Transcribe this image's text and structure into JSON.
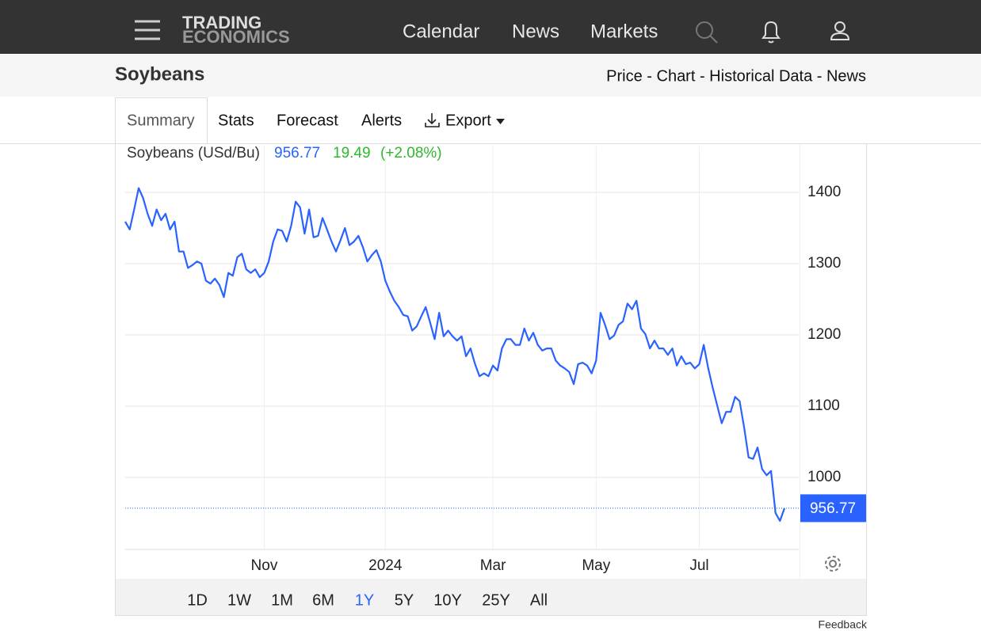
{
  "logo": {
    "line1": "TRADING",
    "line2": "ECONOMICS"
  },
  "nav": [
    "Calendar",
    "News",
    "Markets"
  ],
  "header": {
    "title": "Soybeans",
    "links": "Price - Chart - Historical Data - News"
  },
  "tabs": [
    "Summary",
    "Stats",
    "Forecast",
    "Alerts",
    "Export"
  ],
  "quote": {
    "change": "19.49",
    "change_percent": "(+2.08%)"
  },
  "ranges": [
    "1D",
    "1W",
    "1M",
    "6M",
    "1Y",
    "5Y",
    "10Y",
    "25Y",
    "All"
  ],
  "feedback": "Feedback",
  "chart_data": {
    "type": "line",
    "categories": [
      null,
      null,
      null,
      null,
      null,
      null,
      null,
      null,
      null,
      null,
      null,
      null,
      null,
      null,
      null,
      null,
      null,
      null,
      null,
      null,
      null,
      null,
      null,
      null,
      null,
      null,
      null,
      null,
      null,
      null,
      null,
      "Nov",
      null,
      null,
      null,
      null,
      null,
      null,
      null,
      null,
      null,
      null,
      null,
      null,
      null,
      null,
      null,
      null,
      null,
      null,
      null,
      null,
      null,
      null,
      null,
      null,
      null,
      null,
      "2024",
      null,
      null,
      null,
      null,
      null,
      null,
      null,
      null,
      null,
      null,
      null,
      null,
      null,
      null,
      null,
      null,
      null,
      null,
      null,
      null,
      null,
      null,
      null,
      "Mar",
      null,
      null,
      null,
      null,
      null,
      null,
      null,
      null,
      null,
      null,
      null,
      null,
      null,
      null,
      null,
      null,
      null,
      null,
      null,
      null,
      null,
      null,
      "May",
      null,
      null,
      null,
      null,
      null,
      null,
      null,
      null,
      null,
      null,
      null,
      null,
      null,
      null,
      null,
      null,
      null,
      null,
      null,
      null,
      null,
      null,
      "Jul",
      null,
      null,
      null,
      null,
      null,
      null,
      null,
      null,
      null,
      null,
      null,
      null,
      null,
      null,
      null,
      null,
      null,
      null,
      null
    ],
    "series": [
      {
        "name": "Soybeans (USd/Bu)",
        "color": "#2962ff",
        "values": [
          1359,
          1348,
          1376,
          1406,
          1392,
          1370,
          1353,
          1376,
          1361,
          1370,
          1348,
          1359,
          1317,
          1317,
          1294,
          1298,
          1303,
          1300,
          1276,
          1272,
          1279,
          1270,
          1253,
          1287,
          1283,
          1309,
          1314,
          1292,
          1287,
          1292,
          1281,
          1287,
          1303,
          1331,
          1348,
          1346,
          1331,
          1353,
          1387,
          1379,
          1342,
          1376,
          1337,
          1339,
          1364,
          1348,
          1331,
          1317,
          1333,
          1350,
          1326,
          1331,
          1339,
          1323,
          1303,
          1312,
          1319,
          1303,
          1276,
          1261,
          1248,
          1239,
          1228,
          1226,
          1206,
          1212,
          1226,
          1239,
          1217,
          1194,
          1231,
          1198,
          1206,
          1198,
          1192,
          1198,
          1170,
          1181,
          1159,
          1142,
          1146,
          1142,
          1157,
          1150,
          1181,
          1194,
          1194,
          1186,
          1186,
          1209,
          1192,
          1203,
          1186,
          1178,
          1181,
          1181,
          1164,
          1157,
          1153,
          1148,
          1131,
          1159,
          1161,
          1157,
          1146,
          1164,
          1231,
          1214,
          1194,
          1199,
          1214,
          1219,
          1244,
          1236,
          1248,
          1209,
          1201,
          1181,
          1192,
          1181,
          1181,
          1172,
          1181,
          1157,
          1170,
          1159,
          1161,
          1153,
          1159,
          1186,
          1153,
          1126,
          1101,
          1076,
          1092,
          1092,
          1113,
          1107,
          1070,
          1028,
          1026,
          1042,
          1012,
          1003,
          1009,
          950,
          939,
          956.77
        ]
      }
    ],
    "ylim": [
      900,
      1465
    ],
    "yticks": [
      1000,
      1100,
      1200,
      1300,
      1400
    ],
    "grid": true
  }
}
